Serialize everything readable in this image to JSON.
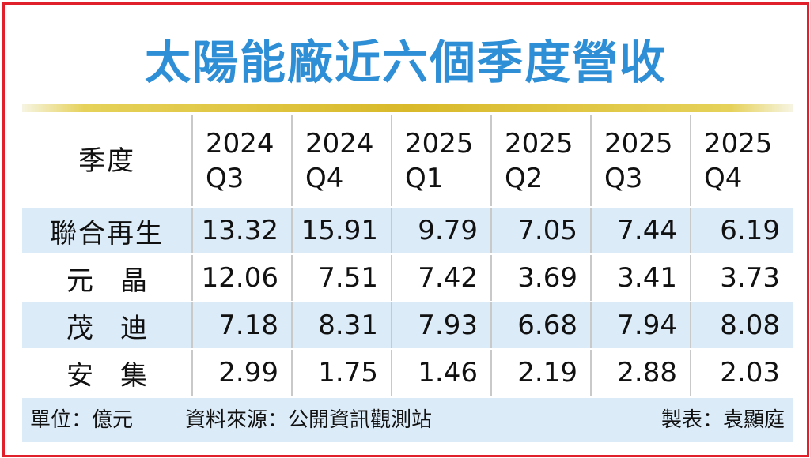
{
  "title": "太陽能廠近六個季度營收",
  "chart_data": {
    "type": "table",
    "title": "太陽能廠近六個季度營收",
    "header_label": "季度",
    "columns": [
      {
        "year": "2024",
        "quarter": "Q3"
      },
      {
        "year": "2024",
        "quarter": "Q4"
      },
      {
        "year": "2025",
        "quarter": "Q1"
      },
      {
        "year": "2025",
        "quarter": "Q2"
      },
      {
        "year": "2025",
        "quarter": "Q3"
      },
      {
        "year": "2025",
        "quarter": "Q4"
      }
    ],
    "rows": [
      {
        "name": "聯合再生",
        "spaced": false,
        "values": [
          "13.32",
          "15.91",
          "9.79",
          "7.05",
          "7.44",
          "6.19"
        ]
      },
      {
        "name": "元晶",
        "spaced": true,
        "values": [
          "12.06",
          "7.51",
          "7.42",
          "3.69",
          "3.41",
          "3.73"
        ]
      },
      {
        "name": "茂迪",
        "spaced": true,
        "values": [
          "7.18",
          "8.31",
          "7.93",
          "6.68",
          "7.94",
          "8.08"
        ]
      },
      {
        "name": "安集",
        "spaced": true,
        "values": [
          "2.99",
          "1.75",
          "1.46",
          "2.19",
          "2.88",
          "2.03"
        ]
      }
    ]
  },
  "footer": {
    "unit": "單位：億元",
    "source": "資料來源：公開資訊觀測站",
    "maker": "製表：袁顯庭"
  },
  "colors": {
    "title": "#2f8fd6",
    "frame": "#e0202a",
    "row_shade": "#dcebf8",
    "rule": "#d9b92a"
  }
}
